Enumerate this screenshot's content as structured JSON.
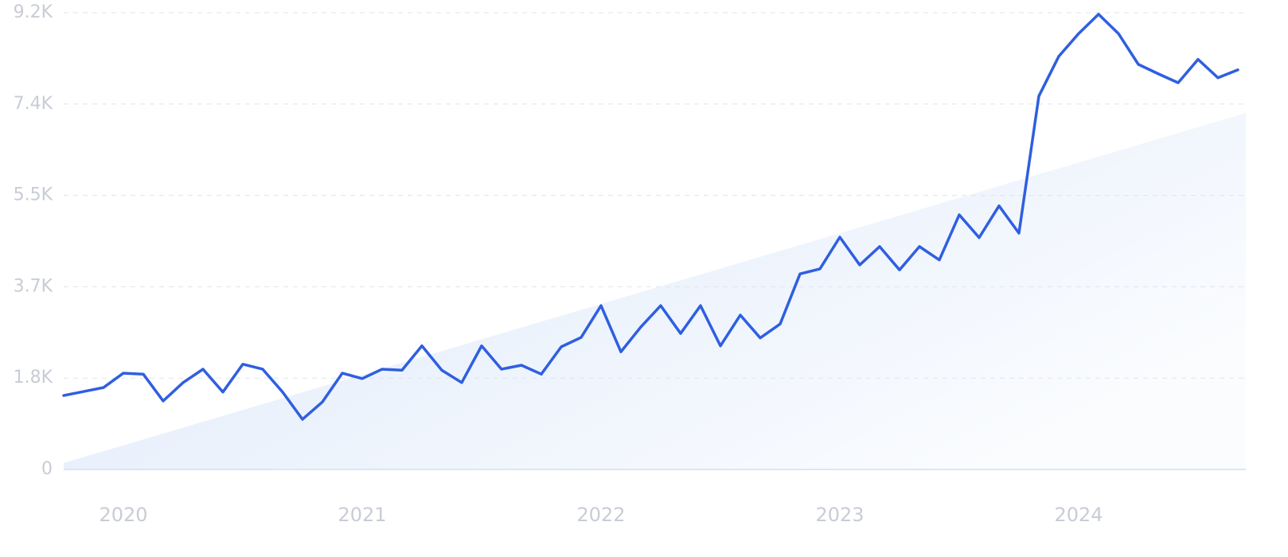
{
  "chart_data": {
    "type": "line",
    "categories": [
      null,
      null,
      null,
      "2020",
      null,
      null,
      null,
      null,
      null,
      null,
      null,
      null,
      null,
      null,
      null,
      "2021",
      null,
      null,
      null,
      null,
      null,
      null,
      null,
      null,
      null,
      null,
      null,
      "2022",
      null,
      null,
      null,
      null,
      null,
      null,
      null,
      null,
      null,
      null,
      null,
      "2023",
      null,
      null,
      null,
      null,
      null,
      null,
      null,
      null,
      null,
      null,
      null,
      "2024",
      null,
      null,
      null,
      null,
      null,
      null,
      null,
      null
    ],
    "values": [
      1490,
      1570,
      1650,
      1940,
      1920,
      1380,
      1750,
      2020,
      1560,
      2120,
      2020,
      1560,
      1010,
      1360,
      1940,
      1830,
      2020,
      2000,
      2490,
      2000,
      1750,
      2490,
      2020,
      2100,
      1920,
      2470,
      2660,
      3300,
      2370,
      2870,
      3300,
      2740,
      3300,
      2490,
      3110,
      2650,
      2930,
      3940,
      4040,
      4680,
      4120,
      4490,
      4020,
      4490,
      4220,
      5130,
      4670,
      5310,
      4760,
      7520,
      8320,
      8780,
      9170,
      8780,
      8160,
      7970,
      7790,
      8260,
      7890,
      8050
    ],
    "color": "#2f5fe0",
    "trend": [
      130,
      7180
    ],
    "trend_color": "#dce8fa",
    "ylim": [
      0,
      9200
    ],
    "yticks": [
      0,
      {
        "value": 1840,
        "label": "1.8K"
      },
      {
        "value": 3680,
        "label": "3.7K"
      },
      {
        "value": 5520,
        "label": "5.5K"
      },
      {
        "value": 7360,
        "label": "7.4K"
      },
      {
        "value": 9200,
        "label": "9.2K"
      }
    ],
    "grid": true
  }
}
